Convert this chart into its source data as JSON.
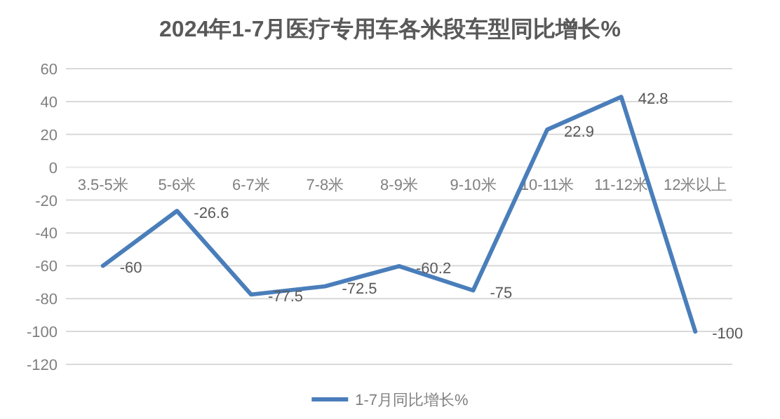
{
  "chart_data": {
    "type": "line",
    "title": "2024年1-7月医疗专用车各米段车型同比增长%",
    "categories": [
      "3.5-5米",
      "5-6米",
      "6-7米",
      "7-8米",
      "8-9米",
      "9-10米",
      "10-11米",
      "11-12米",
      "12米以上"
    ],
    "series": [
      {
        "name": "1-7月同比增长%",
        "color": "#4a7ebb",
        "values": [
          -60,
          -26.6,
          -77.5,
          -72.5,
          -60.2,
          -75,
          22.9,
          42.8,
          -100
        ]
      }
    ],
    "ylim": [
      -120,
      60
    ],
    "yticks": [
      -120,
      -100,
      -80,
      -60,
      -40,
      -20,
      0,
      20,
      40,
      60
    ],
    "grid": "y",
    "legend": "bottom",
    "data_labels": true,
    "line_style": "solid"
  }
}
